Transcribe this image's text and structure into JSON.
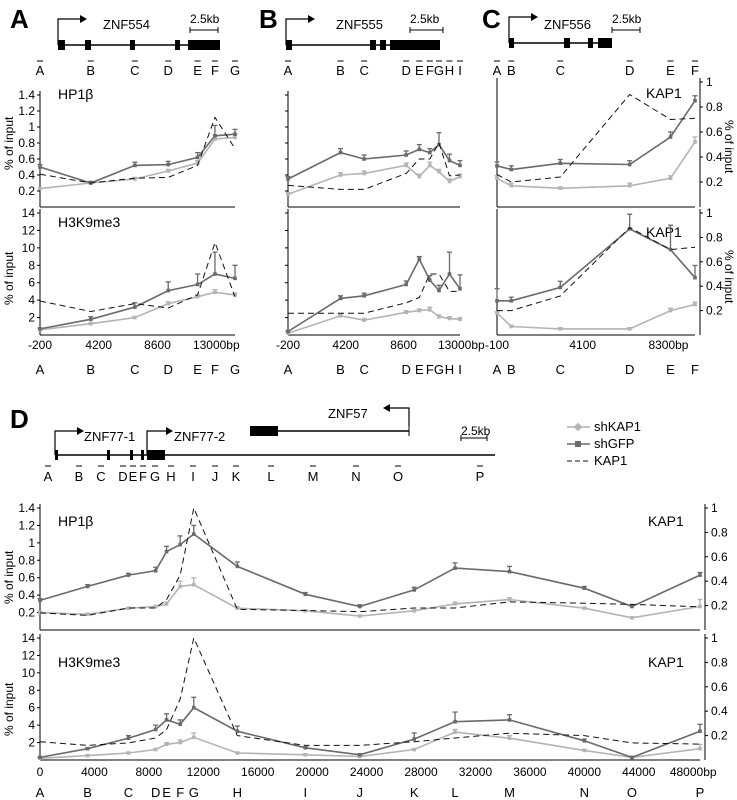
{
  "colors": {
    "shKAP1": "#b4b4b4",
    "shGFP": "#6a6a6a",
    "KAP1": "#111111"
  },
  "kb_scale_label": "2.5kb",
  "percent_input_label": "% of input",
  "legend": {
    "shKAP1": "shKAP1",
    "shGFP": "shGFP",
    "KAP1": "KAP1"
  },
  "panels": {
    "A": {
      "letter": "A",
      "gene": "ZNF554",
      "primers": [
        "A",
        "B",
        "C",
        "D",
        "E",
        "F",
        "G"
      ],
      "x_ticks": [
        "-200",
        "4200",
        "8600",
        "13000bp"
      ],
      "x_tick_values": [
        -200,
        4200,
        8600,
        13000
      ]
    },
    "B": {
      "letter": "B",
      "gene": "ZNF555",
      "primers": [
        "A",
        "B",
        "C",
        "D",
        "E",
        "F",
        "G",
        "H",
        "I"
      ],
      "x_ticks": [
        "-200",
        "4200",
        "8600",
        "13000bp"
      ],
      "x_tick_values": [
        -200,
        4200,
        8600,
        13000
      ]
    },
    "C": {
      "letter": "C",
      "gene": "ZNF556",
      "primers": [
        "A",
        "B",
        "C",
        "D",
        "E",
        "F"
      ],
      "x_ticks": [
        "-100",
        "4100",
        "8300bp"
      ],
      "x_tick_values": [
        -100,
        4100,
        8300
      ]
    },
    "D": {
      "letter": "D",
      "genes": [
        "ZNF77-1",
        "ZNF77-2",
        "ZNF57"
      ],
      "primers": [
        "A",
        "B",
        "C",
        "D",
        "E",
        "F",
        "G",
        "H",
        "I",
        "J",
        "K",
        "L",
        "M",
        "N",
        "O",
        "P"
      ],
      "x_ticks": [
        "0",
        "4000",
        "8000",
        "12000",
        "16000",
        "20000",
        "24000",
        "28000",
        "32000",
        "36000",
        "40000",
        "44000",
        "48000bp"
      ],
      "x_tick_values": [
        0,
        4000,
        8000,
        12000,
        16000,
        20000,
        24000,
        28000,
        32000,
        36000,
        40000,
        44000,
        48000
      ]
    }
  },
  "chart_data": [
    {
      "type": "line",
      "panel": "A",
      "title": "HP1β",
      "ylabel": "% of input",
      "x": [
        -200,
        3600,
        6900,
        9400,
        11600,
        12900,
        14400
      ],
      "ylim": [
        0,
        1.4
      ],
      "yticks": [
        0.2,
        0.4,
        0.6,
        0.8,
        1,
        1.2,
        1.4
      ],
      "series": [
        {
          "name": "shKAP1",
          "values": [
            0.23,
            0.3,
            0.35,
            0.45,
            0.55,
            0.85,
            0.87
          ],
          "err": [
            0,
            0.02,
            0.02,
            0.02,
            0.03,
            0.05,
            0.04
          ]
        },
        {
          "name": "shGFP",
          "values": [
            0.5,
            0.3,
            0.52,
            0.53,
            0.62,
            0.89,
            0.91
          ],
          "err": [
            0.03,
            0.02,
            0.04,
            0.04,
            0.06,
            0.13,
            0.06
          ]
        },
        {
          "name": "KAP1",
          "values": [
            0.41,
            0.3,
            0.36,
            0.37,
            0.52,
            1.12,
            0.73
          ]
        }
      ]
    },
    {
      "type": "line",
      "panel": "A",
      "title": "H3K9me3",
      "ylabel": "% of input",
      "x": [
        -200,
        3600,
        6900,
        9400,
        11600,
        12900,
        14400
      ],
      "ylim": [
        0,
        14
      ],
      "yticks": [
        2,
        4,
        6,
        8,
        10,
        12,
        14
      ],
      "series": [
        {
          "name": "shKAP1",
          "values": [
            0.6,
            1.3,
            2,
            3.6,
            4.4,
            4.9,
            4.6
          ],
          "err": [
            0,
            0.1,
            0.1,
            0.2,
            0.2,
            0.3,
            0.2
          ]
        },
        {
          "name": "shGFP",
          "values": [
            0.7,
            1.8,
            3.2,
            5.1,
            5.8,
            7,
            6.5
          ],
          "err": [
            0.1,
            0.3,
            0.5,
            1,
            1.2,
            2.5,
            1.5
          ]
        },
        {
          "name": "KAP1",
          "values": [
            3.9,
            2.7,
            3.6,
            3.1,
            4.6,
            10.6,
            4.4
          ]
        }
      ]
    },
    {
      "type": "line",
      "panel": "B",
      "title": "",
      "ylabel": "",
      "x": [
        -200,
        3800,
        5600,
        8800,
        9800,
        10600,
        11300,
        12100,
        12900
      ],
      "ylim": [
        0,
        1.4
      ],
      "yticks": [
        0.2,
        0.4,
        0.6,
        0.8,
        1,
        1.2,
        1.4
      ],
      "series": [
        {
          "name": "shKAP1",
          "values": [
            0.16,
            0.4,
            0.42,
            0.52,
            0.38,
            0.52,
            0.44,
            0.32,
            0.38
          ],
          "err": [
            0.02,
            0.03,
            0.03,
            0.03,
            0.03,
            0.04,
            0.03,
            0.03,
            0.03
          ]
        },
        {
          "name": "shGFP",
          "values": [
            0.35,
            0.68,
            0.6,
            0.65,
            0.72,
            0.68,
            0.78,
            0.58,
            0.52
          ],
          "err": [
            0.03,
            0.05,
            0.05,
            0.05,
            0.06,
            0.05,
            0.15,
            0.08,
            0.06
          ]
        },
        {
          "name": "KAP1",
          "values": [
            0.27,
            0.22,
            0.22,
            0.42,
            0.6,
            0.6,
            0.8,
            0.39,
            0.4
          ]
        }
      ]
    },
    {
      "type": "line",
      "panel": "B",
      "title": "",
      "ylabel": "",
      "x": [
        -200,
        3800,
        5600,
        8800,
        9800,
        10600,
        11300,
        12100,
        12900
      ],
      "ylim": [
        0,
        14
      ],
      "yticks": [
        2,
        4,
        6,
        8,
        10,
        12,
        14
      ],
      "series": [
        {
          "name": "shKAP1",
          "values": [
            0.2,
            2.2,
            1.7,
            2.6,
            2.8,
            2.9,
            2.1,
            1.9,
            1.8
          ],
          "err": [
            0.1,
            0.2,
            0.2,
            0.2,
            0.2,
            0.3,
            0.2,
            0.2,
            0.2
          ]
        },
        {
          "name": "shGFP",
          "values": [
            0.4,
            4.2,
            4.5,
            5.8,
            8.7,
            6.3,
            5.1,
            7,
            5.3
          ],
          "err": [
            0.1,
            0.3,
            0.3,
            0.4,
            0.3,
            0.5,
            0.6,
            2.5,
            1.6
          ]
        },
        {
          "name": "KAP1",
          "values": [
            2.5,
            2.5,
            2.5,
            3.7,
            4.3,
            7,
            7,
            5,
            5
          ]
        }
      ]
    },
    {
      "type": "line",
      "panel": "C",
      "title": "",
      "ylabel": "",
      "x": [
        -100,
        600,
        3000,
        6400,
        8400,
        9600
      ],
      "ylim": [
        0,
        1
      ],
      "yticks": [
        0.2,
        0.4,
        0.6,
        0.8,
        1
      ],
      "y2label": "KAP1",
      "y2label_text": "% of input",
      "series": [
        {
          "name": "shKAP1",
          "values": [
            0.23,
            0.17,
            0.15,
            0.17,
            0.23,
            0.52
          ],
          "err": [
            0.02,
            0.02,
            0.01,
            0.02,
            0.02,
            0.04
          ]
        },
        {
          "name": "shGFP",
          "values": [
            0.33,
            0.3,
            0.35,
            0.34,
            0.56,
            0.85
          ],
          "err": [
            0.03,
            0.03,
            0.03,
            0.03,
            0.04,
            0.04
          ]
        },
        {
          "name": "KAP1",
          "values": [
            0.26,
            0.2,
            0.24,
            0.9,
            0.7,
            0.71
          ]
        }
      ]
    },
    {
      "type": "line",
      "panel": "C",
      "title": "",
      "ylabel": "",
      "x": [
        -100,
        600,
        3000,
        6400,
        8400,
        9600
      ],
      "ylim": [
        0,
        1
      ],
      "yticks": [
        0.2,
        0.4,
        0.6,
        0.8,
        1
      ],
      "y2label": "KAP1",
      "y2label_text": "% of input",
      "series": [
        {
          "name": "shKAP1",
          "values": [
            0.18,
            0.07,
            0.05,
            0.05,
            0.2,
            0.25
          ],
          "err": [
            0.01,
            0.01,
            0.01,
            0.01,
            0.02,
            0.02
          ]
        },
        {
          "name": "shGFP",
          "values": [
            0.28,
            0.28,
            0.39,
            0.87,
            0.7,
            0.47
          ],
          "err": [
            0.1,
            0.03,
            0.05,
            0.12,
            0.2,
            0.1
          ]
        },
        {
          "name": "KAP1",
          "values": [
            0.2,
            0.2,
            0.32,
            0.88,
            0.7,
            0.72
          ]
        }
      ]
    },
    {
      "type": "line",
      "panel": "D",
      "title": "HP1β",
      "ylabel": "% of input",
      "y2label": "KAP1",
      "x": [
        0,
        3500,
        6500,
        8500,
        9300,
        10300,
        11300,
        14500,
        19500,
        23500,
        27500,
        30500,
        34500,
        40000,
        43500,
        48500
      ],
      "ylim": [
        0,
        1.4
      ],
      "yticks": [
        0.2,
        0.4,
        0.6,
        0.8,
        1,
        1.2,
        1.4
      ],
      "y2lim": [
        0,
        1
      ],
      "y2ticks": [
        0.2,
        0.4,
        0.6,
        0.8,
        1
      ],
      "series": [
        {
          "name": "shKAP1",
          "values": [
            0.2,
            0.18,
            0.25,
            0.27,
            0.3,
            0.5,
            0.52,
            0.25,
            0.22,
            0.16,
            0.22,
            0.3,
            0.35,
            0.25,
            0.14,
            0.27
          ],
          "err": [
            0.01,
            0.01,
            0.01,
            0.01,
            0.02,
            0.06,
            0.08,
            0.02,
            0.01,
            0.01,
            0.01,
            0.02,
            0.02,
            0.01,
            0.01,
            0.08
          ]
        },
        {
          "name": "shGFP",
          "values": [
            0.34,
            0.5,
            0.63,
            0.68,
            0.9,
            0.98,
            1.1,
            0.73,
            0.41,
            0.27,
            0.46,
            0.71,
            0.67,
            0.48,
            0.27,
            0.63
          ],
          "err": [
            0.02,
            0.02,
            0.02,
            0.04,
            0.06,
            0.1,
            0.1,
            0.05,
            0.02,
            0.02,
            0.03,
            0.06,
            0.06,
            0.02,
            0.02,
            0.03
          ]
        },
        {
          "name": "KAP1",
          "values": [
            0.14,
            0.12,
            0.18,
            0.18,
            0.25,
            0.45,
            1.0,
            0.17,
            0.16,
            0.15,
            0.18,
            0.18,
            0.23,
            0.22,
            0.21,
            0.19
          ]
        }
      ]
    },
    {
      "type": "line",
      "panel": "D",
      "title": "H3K9me3",
      "ylabel": "% of input",
      "y2label": "KAP1",
      "x": [
        0,
        3500,
        6500,
        8500,
        9300,
        10300,
        11300,
        14500,
        19500,
        23500,
        27500,
        30500,
        34500,
        40000,
        43500,
        48500
      ],
      "ylim": [
        0,
        14
      ],
      "yticks": [
        2,
        4,
        6,
        8,
        10,
        12,
        14
      ],
      "y2lim": [
        0,
        1
      ],
      "y2ticks": [
        0.2,
        0.4,
        0.6,
        0.8,
        1
      ],
      "series": [
        {
          "name": "shKAP1",
          "values": [
            0.2,
            0.5,
            0.8,
            1.2,
            1.8,
            2.0,
            2.6,
            0.8,
            0.6,
            0.4,
            1.2,
            3.2,
            2.5,
            1.1,
            0.3,
            1.3
          ],
          "err": [
            0.05,
            0.1,
            0.1,
            0.1,
            0.2,
            0.3,
            0.5,
            0.1,
            0.1,
            0.1,
            0.1,
            0.3,
            0.3,
            0.1,
            0.05,
            0.5
          ]
        },
        {
          "name": "shGFP",
          "values": [
            0.3,
            1.3,
            2.5,
            3.5,
            4.6,
            4.1,
            6.0,
            3.3,
            1.4,
            0.6,
            2.4,
            4.4,
            4.6,
            2.2,
            0.3,
            3.3
          ],
          "err": [
            0.05,
            0.1,
            0.3,
            0.5,
            0.7,
            0.5,
            1.2,
            0.6,
            0.1,
            0.1,
            0.7,
            1.1,
            0.6,
            0.2,
            0.1,
            0.8
          ]
        },
        {
          "name": "KAP1",
          "values": [
            0.15,
            0.12,
            0.14,
            0.18,
            0.25,
            0.5,
            1.0,
            0.2,
            0.12,
            0.12,
            0.15,
            0.18,
            0.22,
            0.2,
            0.14,
            0.13
          ]
        }
      ]
    }
  ]
}
